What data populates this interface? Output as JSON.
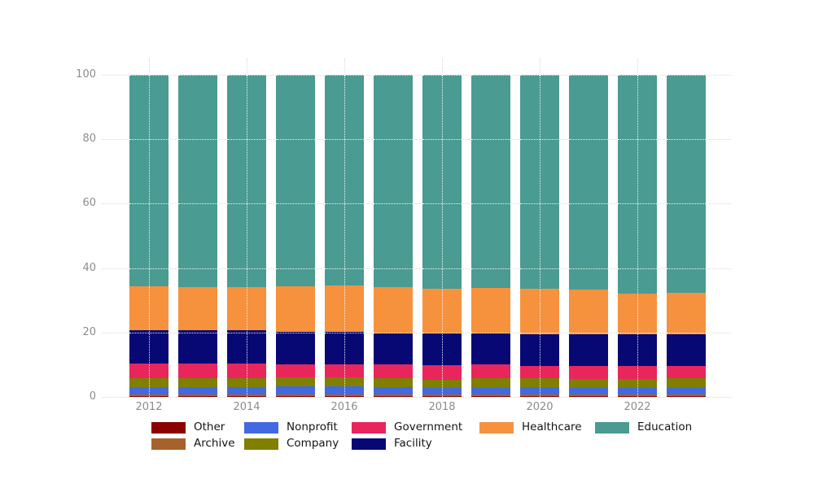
{
  "axes": {
    "y_tick_labels": [
      "0",
      "20",
      "40",
      "60",
      "80",
      "100"
    ],
    "x_tick_labels": [
      "2012",
      "2014",
      "2016",
      "2018",
      "2020",
      "2022"
    ],
    "tick_text_color": "#8c8c8c",
    "grid_color": "#d8d8d8",
    "grid_over_bars_color": "rgba(255,255,255,0.92)"
  },
  "legend": {
    "items": [
      {
        "label": "Other",
        "color": "#8B0000"
      },
      {
        "label": "Archive",
        "color": "#A5622D"
      },
      {
        "label": "Nonprofit",
        "color": "#4169E1"
      },
      {
        "label": "Company",
        "color": "#7F7F00"
      },
      {
        "label": "Government",
        "color": "#E8265C"
      },
      {
        "label": "Facility",
        "color": "#080874"
      },
      {
        "label": "Healthcare",
        "color": "#F6913E"
      },
      {
        "label": "Education",
        "color": "#4A9B91"
      }
    ]
  },
  "chart_data": {
    "type": "bar",
    "stacked": true,
    "normalized_percent": true,
    "title": "",
    "xlabel": "",
    "ylabel": "",
    "ylim": [
      0,
      100
    ],
    "yticks": [
      0,
      20,
      40,
      60,
      80,
      100
    ],
    "grid": true,
    "legend_position": "bottom",
    "categories": [
      "2012",
      "2013",
      "2014",
      "2015",
      "2016",
      "2017",
      "2018",
      "2019",
      "2020",
      "2021",
      "2022",
      "2023"
    ],
    "xtick_shown": [
      "2012",
      "2014",
      "2016",
      "2018",
      "2020",
      "2022"
    ],
    "series": [
      {
        "name": "Other",
        "color": "#8B0000",
        "values": [
          0.3,
          0.3,
          0.3,
          0.3,
          0.3,
          0.3,
          0.3,
          0.3,
          0.3,
          0.3,
          0.3,
          0.3
        ]
      },
      {
        "name": "Archive",
        "color": "#A5622D",
        "values": [
          0.4,
          0.4,
          0.4,
          0.4,
          0.4,
          0.4,
          0.4,
          0.4,
          0.4,
          0.4,
          0.4,
          0.4
        ]
      },
      {
        "name": "Nonprofit",
        "color": "#4169E1",
        "values": [
          2.4,
          2.4,
          2.4,
          2.5,
          2.5,
          2.4,
          2.2,
          2.2,
          2.3,
          2.2,
          2.2,
          2.2
        ]
      },
      {
        "name": "Company",
        "color": "#7F7F00",
        "values": [
          2.8,
          2.8,
          2.8,
          2.8,
          2.8,
          2.8,
          2.5,
          2.8,
          2.7,
          2.7,
          2.7,
          2.8
        ]
      },
      {
        "name": "Government",
        "color": "#E8265C",
        "values": [
          4.5,
          4.5,
          4.4,
          4.2,
          4.0,
          4.3,
          4.5,
          4.4,
          4.0,
          3.9,
          3.9,
          3.8
        ]
      },
      {
        "name": "Facility",
        "color": "#080874",
        "values": [
          10.4,
          10.3,
          10.3,
          10.1,
          10.2,
          9.6,
          9.7,
          9.5,
          9.7,
          9.9,
          9.9,
          9.9
        ]
      },
      {
        "name": "Healthcare",
        "color": "#F6913E",
        "values": [
          13.6,
          13.3,
          13.5,
          14.1,
          14.4,
          14.2,
          14.0,
          14.2,
          14.1,
          13.9,
          12.7,
          12.9
        ]
      },
      {
        "name": "Education",
        "color": "#4A9B91",
        "values": [
          65.6,
          66.0,
          65.9,
          65.6,
          65.4,
          66.0,
          66.4,
          66.2,
          66.5,
          66.7,
          67.9,
          67.7
        ]
      }
    ]
  }
}
